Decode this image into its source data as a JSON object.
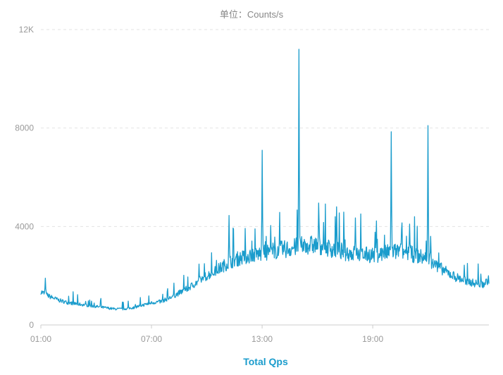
{
  "chart_data": {
    "type": "line",
    "unit_label": "单位：Counts/s",
    "series": [
      {
        "name": "Total Qps",
        "color": "#1a9ccc",
        "points": [
          [
            1.0,
            1350
          ],
          [
            1.5,
            1150
          ],
          [
            2.0,
            1000
          ],
          [
            2.5,
            900
          ],
          [
            3.0,
            850
          ],
          [
            3.5,
            800
          ],
          [
            4.0,
            750
          ],
          [
            4.5,
            700
          ],
          [
            5.0,
            650
          ],
          [
            5.5,
            650
          ],
          [
            6.0,
            700
          ],
          [
            6.5,
            800
          ],
          [
            7.0,
            900
          ],
          [
            7.5,
            950
          ],
          [
            8.0,
            1100
          ],
          [
            8.5,
            1300
          ],
          [
            9.0,
            1500
          ],
          [
            9.5,
            1750
          ],
          [
            10.0,
            2000
          ],
          [
            10.5,
            2200
          ],
          [
            11.0,
            2450
          ],
          [
            11.5,
            2650
          ],
          [
            12.0,
            2750
          ],
          [
            12.5,
            2850
          ],
          [
            13.0,
            2900
          ],
          [
            13.5,
            3000
          ],
          [
            14.0,
            3050
          ],
          [
            14.5,
            3100
          ],
          [
            15.0,
            3200
          ],
          [
            15.5,
            3250
          ],
          [
            16.0,
            3250
          ],
          [
            16.5,
            3150
          ],
          [
            17.0,
            3050
          ],
          [
            17.5,
            2950
          ],
          [
            18.0,
            2900
          ],
          [
            18.5,
            2850
          ],
          [
            19.0,
            2850
          ],
          [
            19.5,
            2900
          ],
          [
            20.0,
            2950
          ],
          [
            20.5,
            3000
          ],
          [
            21.0,
            2900
          ],
          [
            21.5,
            2800
          ],
          [
            22.0,
            2650
          ],
          [
            22.5,
            2400
          ],
          [
            23.0,
            2150
          ],
          [
            23.5,
            1950
          ],
          [
            24.0,
            1800
          ],
          [
            24.5,
            1700
          ],
          [
            25.0,
            1650
          ],
          [
            25.3,
            1850
          ]
        ],
        "spikes": [
          [
            1.25,
            1900
          ],
          [
            11.2,
            4450
          ],
          [
            13.0,
            7100
          ],
          [
            15.0,
            11200
          ],
          [
            16.1,
            4150
          ],
          [
            17.05,
            4800
          ],
          [
            18.05,
            4350
          ],
          [
            20.0,
            7850
          ],
          [
            21.0,
            4100
          ],
          [
            22.0,
            8100
          ],
          [
            22.15,
            3600
          ]
        ]
      }
    ],
    "x_range": [
      1.0,
      25.3
    ],
    "y_range": [
      0,
      12000
    ],
    "y_ticks": [
      {
        "value": 0,
        "label": "0"
      },
      {
        "value": 4000,
        "label": "4000"
      },
      {
        "value": 8000,
        "label": "8000"
      },
      {
        "value": 12000,
        "label": "12K"
      }
    ],
    "x_ticks": [
      {
        "value": 1,
        "label": "01:00"
      },
      {
        "value": 7,
        "label": "07:00"
      },
      {
        "value": 13,
        "label": "13:00"
      },
      {
        "value": 19,
        "label": "19:00"
      }
    ],
    "grid": "horizontal-dashed",
    "legend": "bottom-center"
  }
}
